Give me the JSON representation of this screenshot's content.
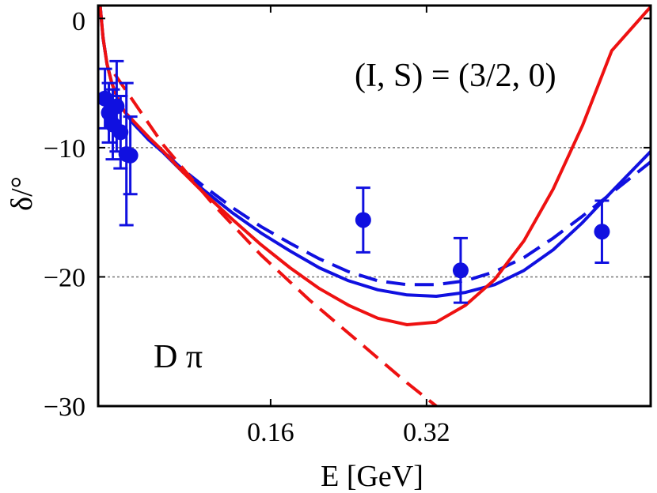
{
  "chart_data": {
    "type": "line",
    "xlabel": "E [GeV]",
    "ylabel": "δ/°",
    "xlim": [
      -0.017,
      0.55
    ],
    "ylim": [
      -30,
      1
    ],
    "xticks": [
      0.16,
      0.32
    ],
    "xtick_labels": [
      "0.16",
      "0.32"
    ],
    "yticks": [
      0,
      -10,
      -20,
      -30
    ],
    "ytick_labels": [
      "0",
      "−10",
      "−20",
      "−30"
    ],
    "reference_lines": [
      -10,
      -20
    ],
    "annotations": [
      "(I, S) = (3/2, 0)",
      "D π"
    ],
    "colors": {
      "blue": "#1010e0",
      "red": "#ee1111",
      "grid": "#777777"
    },
    "series": [
      {
        "color": "#1010e0",
        "style": "solid",
        "x": [
          -0.015,
          -0.012,
          -0.008,
          -0.003,
          0.003,
          0.01,
          0.02,
          0.035,
          0.05,
          0.07,
          0.09,
          0.12,
          0.15,
          0.18,
          0.21,
          0.24,
          0.27,
          0.3,
          0.33,
          0.36,
          0.39,
          0.42,
          0.45,
          0.48,
          0.51,
          0.55
        ],
        "y": [
          1.0,
          -1.5,
          -3.5,
          -5.0,
          -6.2,
          -7.2,
          -8.2,
          -9.4,
          -10.4,
          -11.9,
          -13.2,
          -15.0,
          -16.6,
          -18.0,
          -19.3,
          -20.3,
          -21.0,
          -21.4,
          -21.5,
          -21.2,
          -20.6,
          -19.5,
          -17.9,
          -15.8,
          -13.4,
          -10.3
        ]
      },
      {
        "color": "#1010e0",
        "style": "dashed",
        "x": [
          -0.015,
          -0.012,
          -0.008,
          -0.003,
          0.003,
          0.01,
          0.02,
          0.035,
          0.05,
          0.07,
          0.09,
          0.12,
          0.15,
          0.18,
          0.21,
          0.24,
          0.27,
          0.3,
          0.33,
          0.36,
          0.39,
          0.42,
          0.45,
          0.48,
          0.51,
          0.55
        ],
        "y": [
          1.0,
          -1.5,
          -3.5,
          -5.0,
          -6.2,
          -7.2,
          -8.2,
          -9.4,
          -10.3,
          -11.7,
          -12.9,
          -14.6,
          -16.1,
          -17.4,
          -18.6,
          -19.6,
          -20.3,
          -20.6,
          -20.6,
          -20.3,
          -19.6,
          -18.5,
          -17.0,
          -15.3,
          -13.5,
          -11.1
        ]
      },
      {
        "color": "#ee1111",
        "style": "solid",
        "x": [
          -0.015,
          -0.012,
          -0.008,
          -0.003,
          0.003,
          0.01,
          0.02,
          0.035,
          0.05,
          0.07,
          0.09,
          0.12,
          0.15,
          0.18,
          0.21,
          0.24,
          0.27,
          0.3,
          0.33,
          0.36,
          0.39,
          0.42,
          0.45,
          0.48,
          0.51,
          0.55
        ],
        "y": [
          1.0,
          -1.5,
          -3.5,
          -5.0,
          -6.2,
          -7.2,
          -8.0,
          -9.2,
          -10.3,
          -11.9,
          -13.4,
          -15.5,
          -17.5,
          -19.3,
          -20.9,
          -22.2,
          -23.2,
          -23.7,
          -23.5,
          -22.2,
          -20.2,
          -17.2,
          -13.2,
          -8.3,
          -2.5,
          0.9
        ]
      },
      {
        "color": "#ee1111",
        "style": "dashed",
        "x": [
          0.0,
          0.05,
          0.1,
          0.15,
          0.2,
          0.25,
          0.3,
          0.33
        ],
        "y": [
          -4.3,
          -9.8,
          -14.3,
          -18.3,
          -21.8,
          -25.0,
          -28.2,
          -30.0
        ]
      }
    ],
    "points": {
      "color": "#1010e0",
      "x": [
        -0.01,
        -0.006,
        -0.002,
        0.002,
        0.006,
        0.012,
        0.016
      ],
      "y": [
        -6.2,
        -7.3,
        -8.2,
        -6.8,
        -8.8,
        -10.5,
        -10.6
      ],
      "err": [
        2.3,
        2.3,
        2.7,
        3.5,
        2.8,
        5.5,
        3.0
      ]
    },
    "points_extra": {
      "x": [
        0.255,
        0.355,
        0.5
      ],
      "y": [
        -15.6,
        -19.5,
        -16.5
      ],
      "err": [
        2.5,
        2.5,
        2.4
      ]
    }
  }
}
